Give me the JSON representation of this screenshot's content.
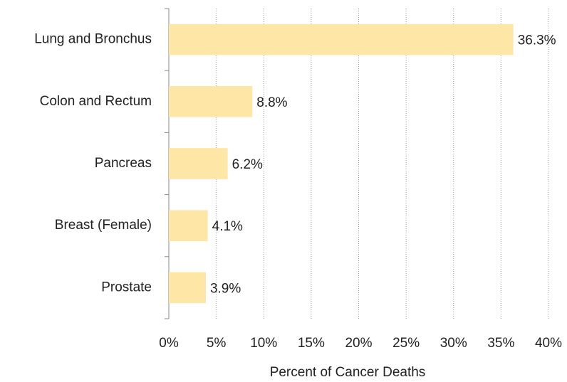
{
  "chart_data": {
    "type": "barh",
    "categories": [
      "Lung and Bronchus",
      "Colon and Rectum",
      "Pancreas",
      "Breast (Female)",
      "Prostate"
    ],
    "values": [
      36.3,
      8.8,
      6.2,
      4.1,
      3.9
    ],
    "value_labels": [
      "36.3%",
      "8.8%",
      "6.2%",
      "4.1%",
      "3.9%"
    ],
    "color": "#fde6a6",
    "xlabel": "Percent of Cancer Deaths",
    "xlim": [
      0,
      40
    ],
    "xticks": [
      {
        "value": 0,
        "label": "0%"
      },
      {
        "value": 5,
        "label": "5%"
      },
      {
        "value": 10,
        "label": "10%"
      },
      {
        "value": 15,
        "label": "15%"
      },
      {
        "value": 20,
        "label": "20%"
      },
      {
        "value": 25,
        "label": "25%"
      },
      {
        "value": 30,
        "label": "30%"
      },
      {
        "value": 35,
        "label": "35%"
      },
      {
        "value": 40,
        "label": "40%"
      }
    ],
    "grid": true
  }
}
